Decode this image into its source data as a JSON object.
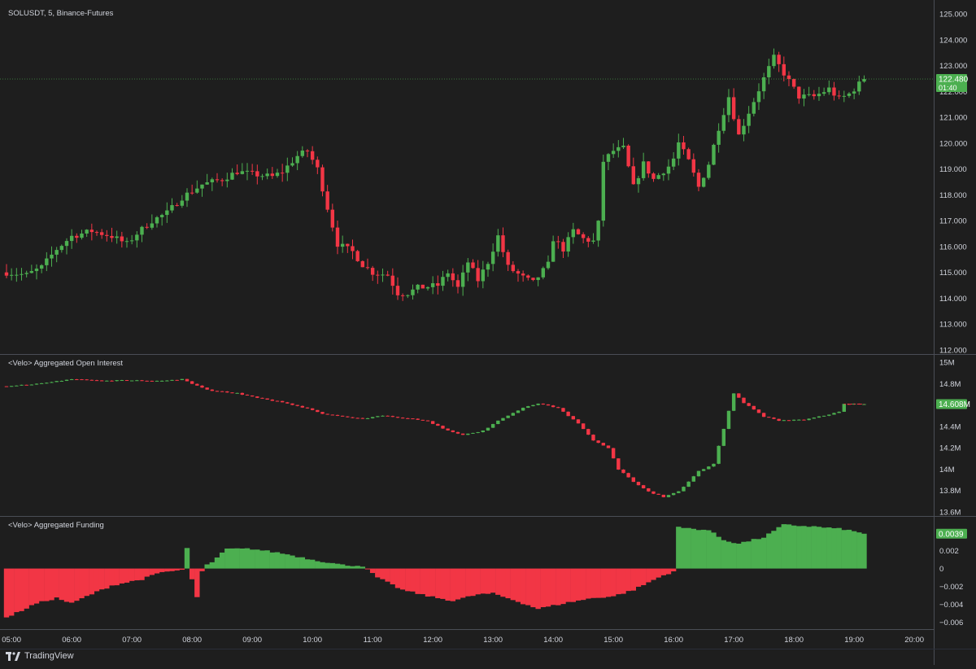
{
  "colors": {
    "background": "#1e1e1e",
    "up": "#4caf50",
    "down": "#f23645",
    "axis_text": "#d1d4dc",
    "divider": "#4a4d55",
    "last_price_line": "#4caf50"
  },
  "branding": {
    "label": "TradingView"
  },
  "time_axis": {
    "labels": [
      "05:00",
      "06:00",
      "07:00",
      "08:00",
      "09:00",
      "10:00",
      "11:00",
      "12:00",
      "13:00",
      "14:00",
      "15:00",
      "16:00",
      "17:00",
      "18:00",
      "19:00",
      "20:00"
    ]
  },
  "chart_data": [
    {
      "id": "price",
      "type": "candlestick",
      "title": "SOLUSDT, 5, Binance-Futures",
      "interval_minutes": 5,
      "x_range": [
        "05:00",
        "20:00"
      ],
      "y_ticks": [
        "125.000",
        "124.000",
        "123.000",
        "122.000",
        "121.000",
        "120.000",
        "119.000",
        "118.000",
        "117.000",
        "116.000",
        "115.000",
        "114.000",
        "113.000",
        "112.000"
      ],
      "y_range": [
        112.0,
        125.0
      ],
      "last_value_label": "122.480",
      "countdown_label": "01:40",
      "last_value": 122.48,
      "anchors": [
        [
          "04:55",
          115.0
        ],
        [
          "05:15",
          114.9
        ],
        [
          "05:30",
          115.2
        ],
        [
          "05:45",
          115.9
        ],
        [
          "06:00",
          116.4
        ],
        [
          "06:20",
          116.6
        ],
        [
          "06:40",
          116.4
        ],
        [
          "06:55",
          116.1
        ],
        [
          "07:05",
          116.5
        ],
        [
          "07:20",
          117.0
        ],
        [
          "07:35",
          117.3
        ],
        [
          "07:50",
          117.9
        ],
        [
          "08:10",
          118.4
        ],
        [
          "08:30",
          118.6
        ],
        [
          "08:45",
          118.9
        ],
        [
          "09:00",
          118.8
        ],
        [
          "09:20",
          118.7
        ],
        [
          "09:30",
          118.9
        ],
        [
          "09:45",
          119.5
        ],
        [
          "09:55",
          119.7
        ],
        [
          "10:05",
          119.0
        ],
        [
          "10:15",
          117.5
        ],
        [
          "10:25",
          116.1
        ],
        [
          "10:40",
          115.8
        ],
        [
          "10:50",
          115.3
        ],
        [
          "11:00",
          115.0
        ],
        [
          "11:15",
          114.9
        ],
        [
          "11:25",
          114.2
        ],
        [
          "11:35",
          114.2
        ],
        [
          "11:45",
          114.4
        ],
        [
          "12:05",
          114.5
        ],
        [
          "12:15",
          115.0
        ],
        [
          "12:25",
          114.4
        ],
        [
          "12:35",
          115.4
        ],
        [
          "12:45",
          114.7
        ],
        [
          "12:55",
          115.4
        ],
        [
          "13:05",
          116.4
        ],
        [
          "13:15",
          115.2
        ],
        [
          "13:30",
          114.8
        ],
        [
          "13:40",
          114.6
        ],
        [
          "13:55",
          115.3
        ],
        [
          "14:00",
          116.3
        ],
        [
          "14:10",
          115.9
        ],
        [
          "14:20",
          116.6
        ],
        [
          "14:30",
          116.3
        ],
        [
          "14:40",
          116.2
        ],
        [
          "14:45",
          116.9
        ],
        [
          "14:50",
          119.3
        ],
        [
          "15:00",
          119.7
        ],
        [
          "15:10",
          119.8
        ],
        [
          "15:20",
          118.3
        ],
        [
          "15:30",
          119.2
        ],
        [
          "15:40",
          118.6
        ],
        [
          "15:55",
          119.1
        ],
        [
          "16:00",
          119.4
        ],
        [
          "16:05",
          120.0
        ],
        [
          "16:15",
          119.3
        ],
        [
          "16:25",
          118.3
        ],
        [
          "16:35",
          119.2
        ],
        [
          "16:45",
          120.6
        ],
        [
          "16:55",
          121.8
        ],
        [
          "17:05",
          120.3
        ],
        [
          "17:15",
          121.2
        ],
        [
          "17:30",
          122.5
        ],
        [
          "17:40",
          123.3
        ],
        [
          "17:50",
          122.7
        ],
        [
          "18:05",
          121.8
        ],
        [
          "18:20",
          121.8
        ],
        [
          "18:35",
          122.1
        ],
        [
          "18:45",
          121.7
        ],
        [
          "18:55",
          121.9
        ],
        [
          "19:10",
          122.48
        ]
      ]
    },
    {
      "id": "open_interest",
      "type": "candlestick",
      "title": "<Velo> Aggregated Open Interest",
      "y_ticks": [
        "15M",
        "14.8M",
        "14.6M",
        "14.4M",
        "14.2M",
        "14M",
        "13.8M",
        "13.6M"
      ],
      "y_range": [
        13.6,
        15.0
      ],
      "last_value_label": "14.608M",
      "last_value": 14.608,
      "anchors": [
        [
          "04:55",
          14.775
        ],
        [
          "05:30",
          14.8
        ],
        [
          "06:00",
          14.84
        ],
        [
          "06:30",
          14.825
        ],
        [
          "06:55",
          14.83
        ],
        [
          "07:30",
          14.825
        ],
        [
          "07:50",
          14.84
        ],
        [
          "08:00",
          14.8
        ],
        [
          "08:15",
          14.74
        ],
        [
          "08:45",
          14.71
        ],
        [
          "09:05",
          14.665
        ],
        [
          "09:30",
          14.625
        ],
        [
          "09:50",
          14.58
        ],
        [
          "10:10",
          14.52
        ],
        [
          "10:30",
          14.49
        ],
        [
          "10:50",
          14.47
        ],
        [
          "11:10",
          14.5
        ],
        [
          "11:30",
          14.48
        ],
        [
          "11:55",
          14.45
        ],
        [
          "12:10",
          14.38
        ],
        [
          "12:30",
          14.32
        ],
        [
          "12:50",
          14.36
        ],
        [
          "13:10",
          14.48
        ],
        [
          "13:30",
          14.57
        ],
        [
          "13:45",
          14.615
        ],
        [
          "14:05",
          14.57
        ],
        [
          "14:25",
          14.43
        ],
        [
          "14:40",
          14.265
        ],
        [
          "14:55",
          14.2
        ],
        [
          "15:05",
          14.0
        ],
        [
          "15:20",
          13.88
        ],
        [
          "15:35",
          13.79
        ],
        [
          "15:50",
          13.74
        ],
        [
          "16:05",
          13.79
        ],
        [
          "16:25",
          13.98
        ],
        [
          "16:40",
          14.05
        ],
        [
          "16:50",
          14.38
        ],
        [
          "17:00",
          14.71
        ],
        [
          "17:10",
          14.62
        ],
        [
          "17:30",
          14.49
        ],
        [
          "17:45",
          14.455
        ],
        [
          "18:10",
          14.46
        ],
        [
          "18:30",
          14.5
        ],
        [
          "18:45",
          14.535
        ],
        [
          "18:50",
          14.608
        ],
        [
          "19:10",
          14.608
        ]
      ]
    },
    {
      "id": "funding",
      "type": "bar",
      "title": "<Velo> Aggregated Funding",
      "y_ticks": [
        "0.002",
        "0",
        "−0.002",
        "−0.004",
        "−0.006"
      ],
      "y_tick_values": [
        0.002,
        0,
        -0.002,
        -0.004,
        -0.006
      ],
      "y_range": [
        -0.0066,
        0.0047
      ],
      "last_value_label": "0.0039",
      "last_value": 0.0039,
      "anchors": [
        [
          "04:55",
          -0.0055
        ],
        [
          "05:25",
          -0.0039
        ],
        [
          "05:45",
          -0.0033
        ],
        [
          "06:00",
          -0.0039
        ],
        [
          "06:15",
          -0.0031
        ],
        [
          "06:40",
          -0.0019
        ],
        [
          "07:10",
          -0.0012
        ],
        [
          "07:30",
          -0.0004
        ],
        [
          "07:50",
          -0.0002
        ],
        [
          "08:00",
          -0.0001
        ],
        [
          "08:20",
          0.0007
        ],
        [
          "08:35",
          0.0022
        ],
        [
          "09:00",
          0.0022
        ],
        [
          "09:30",
          0.0017
        ],
        [
          "10:00",
          0.001
        ],
        [
          "10:30",
          0.0004
        ],
        [
          "10:50",
          0.0003
        ],
        [
          "11:05",
          -0.001
        ],
        [
          "11:30",
          -0.0024
        ],
        [
          "12:00",
          -0.0032
        ],
        [
          "12:20",
          -0.0036
        ],
        [
          "12:45",
          -0.0029
        ],
        [
          "13:00",
          -0.0028
        ],
        [
          "13:20",
          -0.0035
        ],
        [
          "13:45",
          -0.0045
        ],
        [
          "14:15",
          -0.0038
        ],
        [
          "14:40",
          -0.0033
        ],
        [
          "15:00",
          -0.0031
        ],
        [
          "15:20",
          -0.0024
        ],
        [
          "15:45",
          -0.001
        ],
        [
          "16:00",
          -0.0003
        ],
        [
          "16:05",
          0.0046
        ],
        [
          "16:35",
          0.0043
        ],
        [
          "16:50",
          0.0032
        ],
        [
          "17:05",
          0.0028
        ],
        [
          "17:30",
          0.0035
        ],
        [
          "17:50",
          0.0049
        ],
        [
          "18:20",
          0.0047
        ],
        [
          "18:50",
          0.0044
        ],
        [
          "19:10",
          0.0039
        ]
      ],
      "spikes": [
        [
          "07:55",
          0.0023
        ],
        [
          "08:00",
          -0.0012
        ],
        [
          "08:05",
          -0.0032
        ],
        [
          "08:10",
          -0.0003
        ],
        [
          "08:20",
          0.0007
        ]
      ]
    }
  ]
}
